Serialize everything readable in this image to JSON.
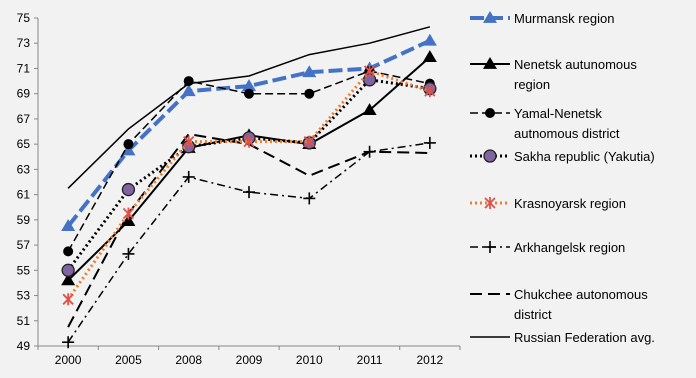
{
  "chart_data": {
    "type": "line",
    "title": "",
    "xlabel": "",
    "ylabel": "",
    "categories": [
      "2000",
      "2005",
      "2008",
      "2009",
      "2010",
      "2011",
      "2012"
    ],
    "ylim": [
      49,
      75
    ],
    "yticks": [
      49,
      51,
      53,
      55,
      57,
      59,
      61,
      63,
      65,
      67,
      69,
      71,
      73,
      75
    ],
    "grid": false,
    "legend_position": "right",
    "series": [
      {
        "name": "Murmansk region",
        "legend_lines": [
          "Murmansk region"
        ],
        "values": [
          58.5,
          64.5,
          69.2,
          69.6,
          70.7,
          71.0,
          73.2
        ],
        "color": "#4472c4",
        "dash": "14,5",
        "width": 4,
        "marker": "triangle"
      },
      {
        "name": "Nenetsk autunomous region",
        "legend_lines": [
          "Nenetsk autunomous",
          "region"
        ],
        "values": [
          54.2,
          58.9,
          64.7,
          65.7,
          65.0,
          67.7,
          71.9
        ],
        "color": "#000000",
        "dash": "",
        "width": 2,
        "marker": "triangle"
      },
      {
        "name": "Yamal-Nenetsk autnomous district",
        "legend_lines": [
          "Yamal-Nenetsk",
          "autnomous district"
        ],
        "values": [
          56.5,
          65.0,
          70.0,
          69.0,
          69.0,
          70.8,
          69.8
        ],
        "color": "#000000",
        "dash": "8,4",
        "width": 1.5,
        "marker": "circle"
      },
      {
        "name": "Sakha republic (Yakutia)",
        "legend_lines": [
          "Sakha republic (Yakutia)"
        ],
        "values": [
          55.0,
          61.4,
          64.8,
          65.5,
          65.1,
          70.1,
          69.4
        ],
        "color": "#000000",
        "dash": "2,3",
        "width": 3,
        "marker": "circle-purple"
      },
      {
        "name": "Krasnoyarsk region",
        "legend_lines": [
          "Krasnoyarsk region"
        ],
        "values": [
          52.7,
          59.5,
          65.2,
          65.2,
          65.2,
          70.8,
          69.2
        ],
        "color": "#ee7d31",
        "dash": "2,3",
        "width": 3,
        "marker": "asterisk"
      },
      {
        "name": "Arkhangelsk region",
        "legend_lines": [
          "Arkhangelsk region"
        ],
        "values": [
          49.3,
          56.3,
          62.4,
          61.2,
          60.7,
          64.4,
          65.1
        ],
        "color": "#000000",
        "dash": "8,4,2,4",
        "width": 1.5,
        "marker": "plus"
      },
      {
        "name": "Chukchee autonomous district",
        "legend_lines": [
          "Chukchee autonomous",
          "district"
        ],
        "values": [
          50.5,
          59.5,
          65.8,
          65.0,
          62.5,
          64.4,
          64.3
        ],
        "color": "#000000",
        "dash": "12,6",
        "width": 2,
        "marker": "none"
      },
      {
        "name": "Russian Federation avg.",
        "legend_lines": [
          "Russian Federation avg."
        ],
        "values": [
          61.5,
          66.2,
          69.8,
          70.4,
          72.1,
          73.0,
          74.3
        ],
        "color": "#000000",
        "dash": "",
        "width": 1.5,
        "marker": "none"
      }
    ]
  }
}
